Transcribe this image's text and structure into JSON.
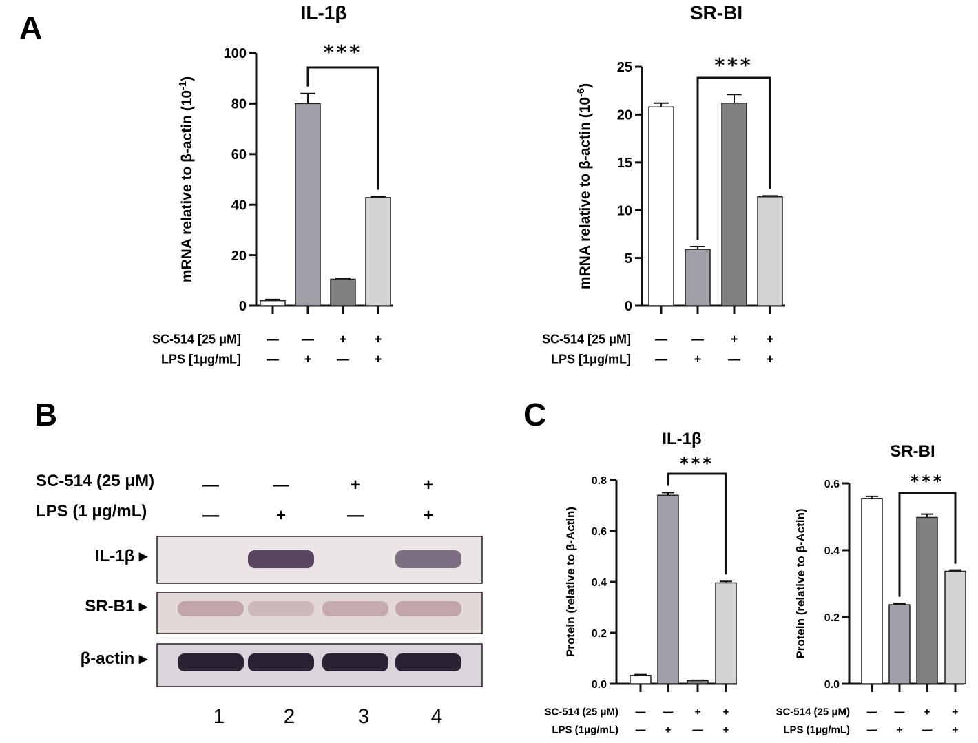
{
  "panels": {
    "A": "A",
    "B": "B",
    "C": "C"
  },
  "colors": {
    "bar_fills": [
      "#ffffff",
      "#a1a1aa",
      "#808080",
      "#d4d4d4"
    ],
    "axis": "#111111"
  },
  "chart_data": [
    {
      "id": "A_il1b",
      "type": "bar",
      "title": "IL-1β",
      "ylabel": "mRNA relative to β-actin (10",
      "ylabel_exp": "-1",
      "ylabel_close": ")",
      "ylim": [
        0,
        100
      ],
      "yticks": [
        "0",
        "20",
        "40",
        "60",
        "80",
        "100"
      ],
      "values": [
        2,
        80,
        10.5,
        42.8
      ],
      "errors": [
        0.5,
        4,
        0.4,
        0.4
      ],
      "significance": {
        "from": 1,
        "to": 3,
        "label": "***"
      },
      "rows": [
        {
          "label": "SC-514 [25 μM]",
          "values": [
            "—",
            "—",
            "+",
            "+"
          ]
        },
        {
          "label": "LPS [1μg/mL]",
          "values": [
            "—",
            "+",
            "—",
            "+"
          ]
        }
      ]
    },
    {
      "id": "A_srbi",
      "type": "bar",
      "title": "SR-BI",
      "ylabel": "mRNA relative to β-actin (10",
      "ylabel_exp": "-6",
      "ylabel_close": ")",
      "ylim": [
        0,
        25
      ],
      "yticks": [
        "0",
        "5",
        "10",
        "15",
        "20",
        "25"
      ],
      "values": [
        20.8,
        5.9,
        21.2,
        11.4
      ],
      "errors": [
        0.4,
        0.3,
        0.9,
        0.1
      ],
      "significance": {
        "from": 1,
        "to": 3,
        "label": "***"
      },
      "rows": [
        {
          "label": "SC-514 [25 μM]",
          "values": [
            "—",
            "—",
            "+",
            "+"
          ]
        },
        {
          "label": "LPS [1μg/mL]",
          "values": [
            "—",
            "+",
            "—",
            "+"
          ]
        }
      ]
    },
    {
      "id": "C_il1b",
      "type": "bar",
      "title": "IL-1β",
      "ylabel": "Protein (relative to β-Actin)",
      "ylabel_exp": "",
      "ylabel_close": "",
      "ylim": [
        0,
        0.8
      ],
      "yticks": [
        "0.0",
        "0.2",
        "0.4",
        "0.6",
        "0.8"
      ],
      "values": [
        0.033,
        0.74,
        0.012,
        0.396
      ],
      "errors": [
        0.003,
        0.01,
        0.002,
        0.006
      ],
      "significance": {
        "from": 1,
        "to": 3,
        "label": "***"
      },
      "rows": [
        {
          "label": "SC-514 (25 μM)",
          "values": [
            "—",
            "—",
            "+",
            "+"
          ]
        },
        {
          "label": "LPS (1μg/mL)",
          "values": [
            "—",
            "+",
            "—",
            "+"
          ]
        }
      ]
    },
    {
      "id": "C_srbi",
      "type": "bar",
      "title": "SR-BI",
      "ylabel": "Protein (relative to β-Actin)",
      "ylabel_exp": "",
      "ylabel_close": "",
      "ylim": [
        0,
        0.6
      ],
      "yticks": [
        "0.0",
        "0.2",
        "0.4",
        "0.6"
      ],
      "values": [
        0.555,
        0.237,
        0.498,
        0.337
      ],
      "errors": [
        0.006,
        0.003,
        0.01,
        0.002
      ],
      "significance": {
        "from": 1,
        "to": 3,
        "label": "***"
      },
      "rows": [
        {
          "label": "SC-514 (25 μM)",
          "values": [
            "—",
            "—",
            "+",
            "+"
          ]
        },
        {
          "label": "LPS (1μg/mL)",
          "values": [
            "—",
            "+",
            "—",
            "+"
          ]
        }
      ]
    }
  ],
  "blot": {
    "conditions": [
      {
        "label": "SC-514 (25 μM)",
        "values": [
          "—",
          "—",
          "+",
          "+"
        ]
      },
      {
        "label": "LPS (1 μg/mL)",
        "values": [
          "—",
          "+",
          "—",
          "+"
        ]
      }
    ],
    "bands": [
      {
        "label": "IL-1β ▸",
        "intensity": [
          0,
          1,
          0,
          0.75
        ]
      },
      {
        "label": "SR-B1 ▸",
        "intensity": [
          0.45,
          0.3,
          0.4,
          0.45
        ]
      },
      {
        "label": "β-actin ▸",
        "intensity": [
          1,
          1,
          1,
          1
        ]
      }
    ],
    "lanes": [
      "1",
      "2",
      "3",
      "4"
    ]
  }
}
